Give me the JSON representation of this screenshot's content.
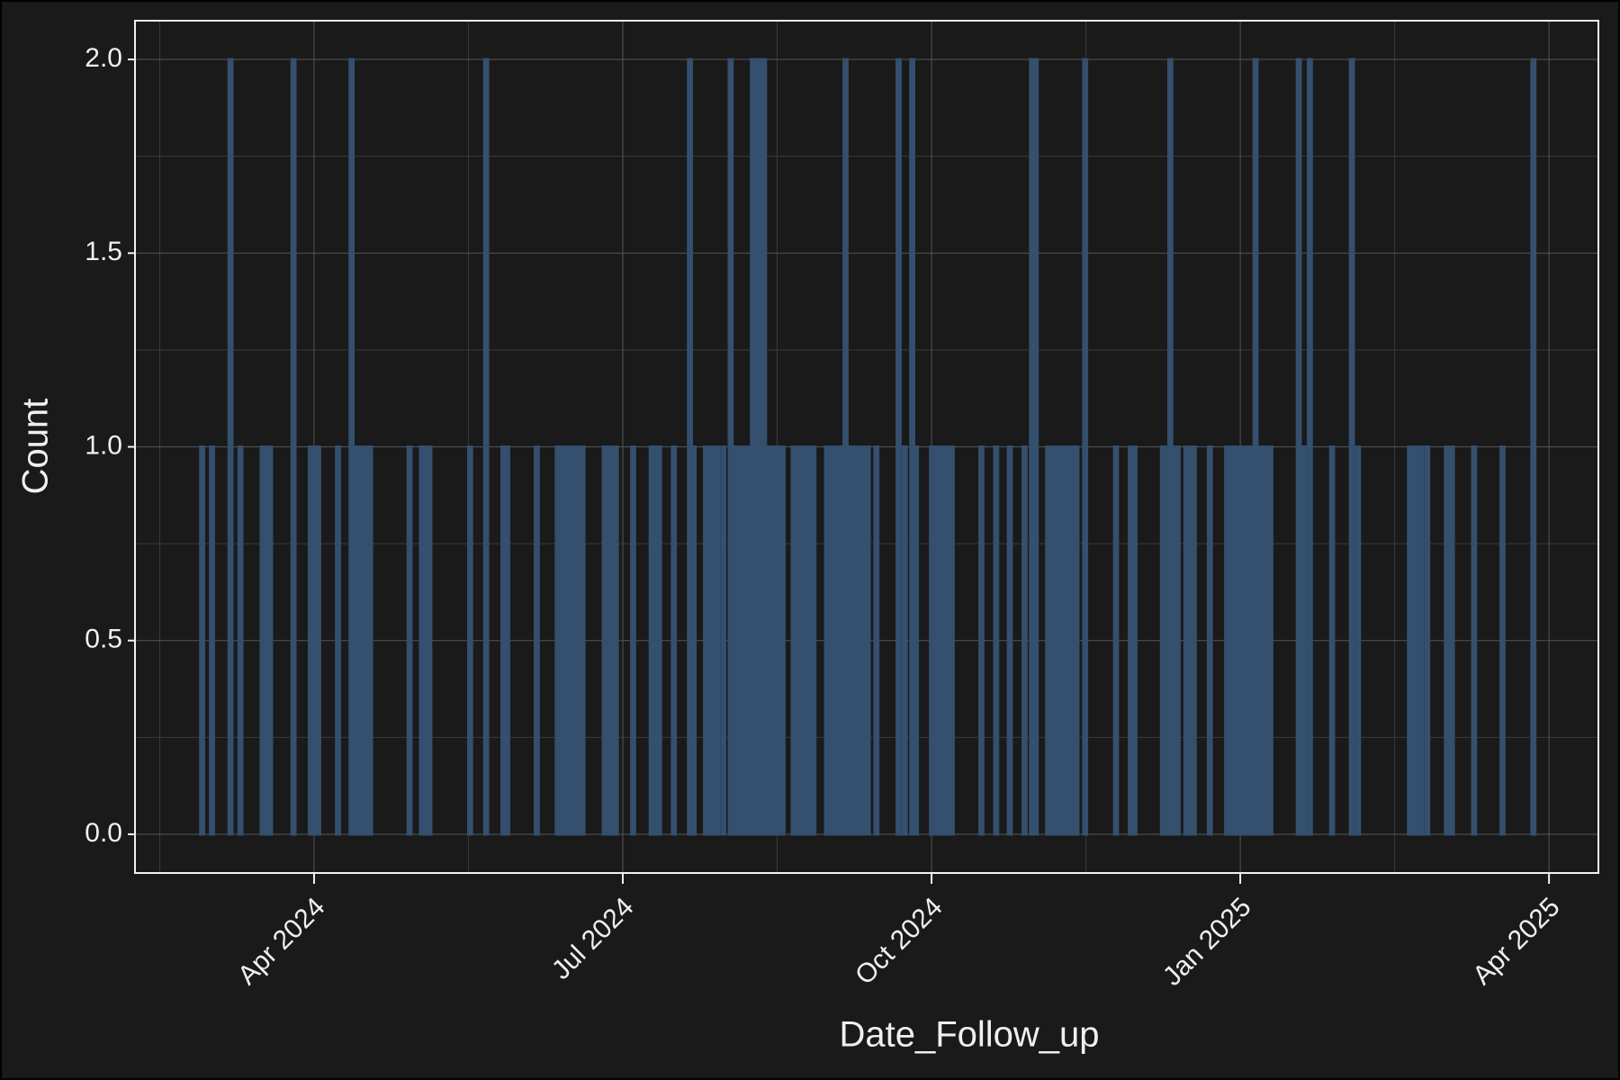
{
  "chart_data": {
    "type": "bar",
    "x_label": "Date_Follow_up",
    "y_label": "Count",
    "color": "#34506e",
    "x": [
      2024.158,
      2024.166,
      2024.181,
      2024.189,
      2024.207,
      2024.21,
      2024.213,
      2024.232,
      2024.246,
      2024.249,
      2024.252,
      2024.268,
      2024.279,
      2024.283,
      2024.286,
      2024.289,
      2024.292,
      2024.294,
      2024.326,
      2024.336,
      2024.339,
      2024.342,
      2024.375,
      2024.388,
      2024.402,
      2024.405,
      2024.429,
      2024.446,
      2024.449,
      2024.452,
      2024.455,
      2024.457,
      2024.46,
      2024.463,
      2024.466,
      2024.484,
      2024.487,
      2024.49,
      2024.493,
      2024.507,
      2024.522,
      2024.525,
      2024.528,
      2024.54,
      2024.553,
      2024.556,
      2024.566,
      2024.569,
      2024.572,
      2024.575,
      2024.58,
      2024.586,
      2024.589,
      2024.592,
      2024.595,
      2024.598,
      2024.601,
      2024.604,
      2024.607,
      2024.61,
      2024.613,
      2024.615,
      2024.618,
      2024.621,
      2024.624,
      2024.628,
      2024.637,
      2024.64,
      2024.643,
      2024.646,
      2024.649,
      2024.653,
      2024.664,
      2024.667,
      2024.67,
      2024.673,
      2024.677,
      2024.679,
      2024.682,
      2024.685,
      2024.688,
      2024.691,
      2024.694,
      2024.697,
      2024.704,
      2024.722,
      2024.727,
      2024.733,
      2024.736,
      2024.749,
      2024.752,
      2024.755,
      2024.758,
      2024.761,
      2024.765,
      2024.789,
      2024.801,
      2024.812,
      2024.824,
      2024.83,
      2024.833,
      2024.843,
      2024.846,
      2024.849,
      2024.852,
      2024.855,
      2024.858,
      2024.861,
      2024.864,
      2024.866,
      2024.873,
      2024.898,
      2024.91,
      2024.913,
      2024.936,
      2024.939,
      2024.942,
      2024.945,
      2024.948,
      2024.955,
      2024.958,
      2024.961,
      2024.974,
      2024.988,
      2024.991,
      2024.994,
      2024.997,
      2025.0,
      2025.003,
      2025.006,
      2025.009,
      2025.011,
      2025.014,
      2025.017,
      2025.02,
      2025.023,
      2025.046,
      2025.05,
      2025.055,
      2025.073,
      2025.089,
      2025.094,
      2025.136,
      2025.139,
      2025.142,
      2025.145,
      2025.15,
      2025.166,
      2025.17,
      2025.188,
      2025.211,
      2025.236
    ],
    "values": [
      1,
      1,
      2,
      1,
      1,
      1,
      1,
      2,
      1,
      1,
      1,
      1,
      2,
      1,
      1,
      1,
      1,
      1,
      1,
      1,
      1,
      1,
      1,
      2,
      1,
      1,
      1,
      1,
      1,
      1,
      1,
      1,
      1,
      1,
      1,
      1,
      1,
      1,
      1,
      1,
      1,
      1,
      1,
      1,
      2,
      1,
      1,
      1,
      1,
      1,
      1,
      2,
      1,
      1,
      1,
      1,
      1,
      2,
      2,
      2,
      2,
      1,
      1,
      1,
      1,
      1,
      1,
      1,
      1,
      1,
      1,
      1,
      1,
      1,
      1,
      1,
      1,
      2,
      1,
      1,
      1,
      1,
      1,
      1,
      1,
      2,
      1,
      2,
      1,
      1,
      1,
      1,
      1,
      1,
      1,
      1,
      1,
      1,
      1,
      2,
      2,
      1,
      1,
      1,
      1,
      1,
      1,
      1,
      1,
      1,
      2,
      1,
      1,
      1,
      1,
      1,
      2,
      1,
      1,
      1,
      1,
      1,
      1,
      1,
      1,
      1,
      1,
      1,
      1,
      1,
      1,
      2,
      1,
      1,
      1,
      1,
      2,
      1,
      2,
      1,
      2,
      1,
      1,
      1,
      1,
      1,
      1,
      1,
      1,
      1,
      1,
      2
    ],
    "xlim": [
      2024.105,
      2025.29
    ],
    "xticks": [
      {
        "value": 2024.25,
        "label": "Apr 2024"
      },
      {
        "value": 2024.5,
        "label": "Jul 2024"
      },
      {
        "value": 2024.75,
        "label": "Oct 2024"
      },
      {
        "value": 2025.0,
        "label": "Jan 2025"
      },
      {
        "value": 2025.25,
        "label": "Apr 2025"
      }
    ],
    "ylim": [
      -0.1,
      2.1
    ],
    "yticks": [
      {
        "value": 0,
        "label": "0.0"
      },
      {
        "value": 0.5,
        "label": "0.5"
      },
      {
        "value": 1,
        "label": "1.0"
      },
      {
        "value": 1.5,
        "label": "1.5"
      },
      {
        "value": 2,
        "label": "2.0"
      }
    ],
    "grid": true
  }
}
